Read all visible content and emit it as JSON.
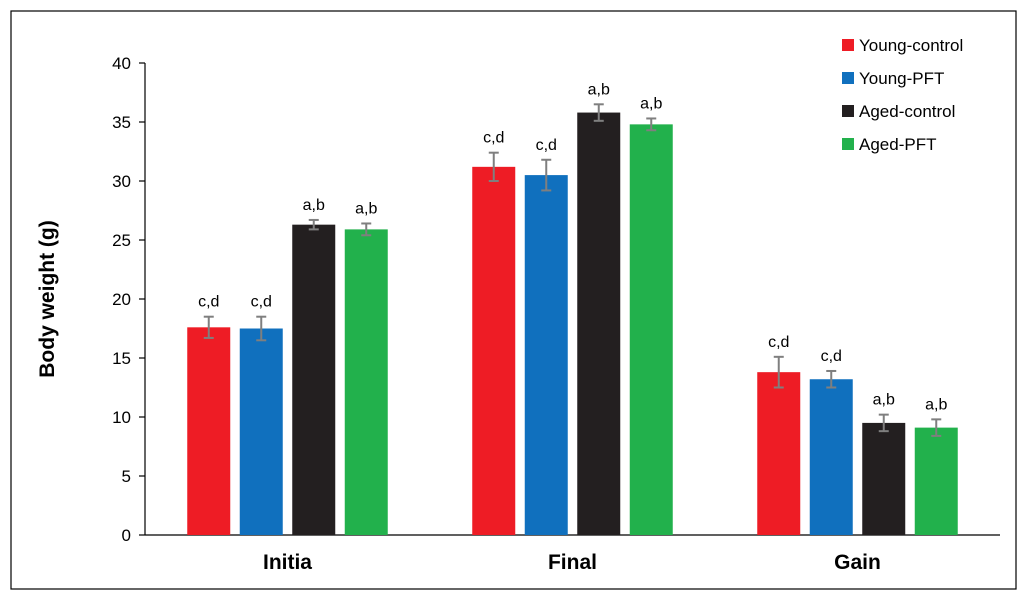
{
  "chart_data": {
    "type": "bar",
    "title": "",
    "xlabel": "",
    "ylabel": "Body weight (g)",
    "ylim": [
      0,
      40
    ],
    "yticks": [
      0,
      5,
      10,
      15,
      20,
      25,
      30,
      35,
      40
    ],
    "categories": [
      "Initia",
      "Final",
      "Gain"
    ],
    "grid": false,
    "legend_position": "top-right",
    "series": [
      {
        "name": "Young-control",
        "color": "#ee1c25",
        "values": [
          17.6,
          31.2,
          13.8
        ],
        "errors": [
          0.9,
          1.2,
          1.3
        ],
        "labels": [
          "c,d",
          "c,d",
          "c,d"
        ]
      },
      {
        "name": "Young-PFT",
        "color": "#1070be",
        "values": [
          17.5,
          30.5,
          13.2
        ],
        "errors": [
          1.0,
          1.3,
          0.7
        ],
        "labels": [
          "c,d",
          "c,d",
          "c,d"
        ]
      },
      {
        "name": "Aged-control",
        "color": "#231f20",
        "values": [
          26.3,
          35.8,
          9.5
        ],
        "errors": [
          0.4,
          0.7,
          0.7
        ],
        "labels": [
          "a,b",
          "a,b",
          "a,b"
        ]
      },
      {
        "name": "Aged-PFT",
        "color": "#22b14c",
        "values": [
          25.9,
          34.8,
          9.1
        ],
        "errors": [
          0.5,
          0.5,
          0.7
        ],
        "labels": [
          "a,b",
          "a,b",
          "a,b"
        ]
      }
    ],
    "error_bar_color": "#7f7f7f"
  }
}
